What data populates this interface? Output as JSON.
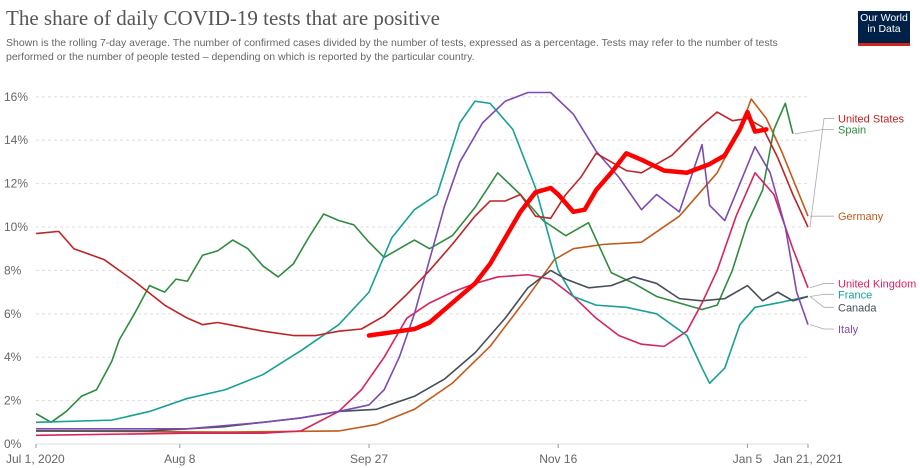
{
  "header": {
    "title": "The share of daily COVID-19 tests that are positive",
    "subtitle": "Shown is the rolling 7-day average. The number of confirmed cases divided by the number of tests, expressed as a percentage. Tests may refer to the number of tests performed or the number of people tested – depending on which is reported by the particular country.",
    "logo_lines": [
      "Our World",
      "in Data"
    ]
  },
  "colors": {
    "grid": "#dddddd",
    "tick": "#666666",
    "annotation": "#ff0000"
  },
  "chart_data": {
    "type": "line",
    "title": "The share of daily COVID-19 tests that are positive",
    "xlabel": "",
    "ylabel": "",
    "x_ticks": [
      {
        "label": "Jul 1, 2020",
        "day": 0
      },
      {
        "label": "Aug 8",
        "day": 38
      },
      {
        "label": "Sep 27",
        "day": 88
      },
      {
        "label": "Nov 16",
        "day": 138
      },
      {
        "label": "Jan 5",
        "day": 188
      },
      {
        "label": "Jan 21, 2021",
        "day": 204
      }
    ],
    "y_ticks": [
      "0%",
      "2%",
      "4%",
      "6%",
      "8%",
      "10%",
      "12%",
      "14%",
      "16%"
    ],
    "ylim": [
      0,
      16.5
    ],
    "x_range_days": [
      0,
      204
    ],
    "grid": true,
    "legend": "right, inline labels",
    "series": [
      {
        "name": "Germany",
        "color": "#c15b1b",
        "points": [
          [
            0,
            0.6
          ],
          [
            50,
            0.55
          ],
          [
            80,
            0.6
          ],
          [
            90,
            0.9
          ],
          [
            100,
            1.6
          ],
          [
            110,
            2.8
          ],
          [
            120,
            4.5
          ],
          [
            130,
            6.8
          ],
          [
            137,
            8.5
          ],
          [
            142,
            9.0
          ],
          [
            150,
            9.2
          ],
          [
            160,
            9.3
          ],
          [
            170,
            10.5
          ],
          [
            180,
            12.5
          ],
          [
            186,
            14.5
          ],
          [
            189,
            15.9
          ],
          [
            193,
            15.0
          ],
          [
            197,
            13.5
          ],
          [
            204,
            10.5
          ]
        ]
      },
      {
        "name": "Spain",
        "color": "#2f8b3e",
        "points": [
          [
            0,
            1.4
          ],
          [
            4,
            1.0
          ],
          [
            8,
            1.5
          ],
          [
            12,
            2.2
          ],
          [
            16,
            2.5
          ],
          [
            20,
            3.8
          ],
          [
            22,
            4.8
          ],
          [
            26,
            6.0
          ],
          [
            30,
            7.3
          ],
          [
            34,
            7.0
          ],
          [
            37,
            7.6
          ],
          [
            40,
            7.5
          ],
          [
            44,
            8.7
          ],
          [
            48,
            8.9
          ],
          [
            52,
            9.4
          ],
          [
            56,
            9.0
          ],
          [
            60,
            8.2
          ],
          [
            64,
            7.7
          ],
          [
            68,
            8.3
          ],
          [
            72,
            9.5
          ],
          [
            76,
            10.6
          ],
          [
            80,
            10.3
          ],
          [
            84,
            10.1
          ],
          [
            88,
            9.3
          ],
          [
            92,
            8.6
          ],
          [
            96,
            9.0
          ],
          [
            100,
            9.4
          ],
          [
            104,
            9.0
          ],
          [
            110,
            9.6
          ],
          [
            116,
            10.9
          ],
          [
            122,
            12.5
          ],
          [
            128,
            11.5
          ],
          [
            134,
            10.3
          ],
          [
            140,
            9.6
          ],
          [
            146,
            10.2
          ],
          [
            152,
            7.9
          ],
          [
            158,
            7.4
          ],
          [
            164,
            6.8
          ],
          [
            170,
            6.5
          ],
          [
            176,
            6.2
          ],
          [
            180,
            6.4
          ],
          [
            184,
            8.0
          ],
          [
            188,
            10.2
          ],
          [
            192,
            11.7
          ],
          [
            195,
            14.5
          ],
          [
            198,
            15.7
          ],
          [
            200,
            14.3
          ]
        ]
      },
      {
        "name": "United Kingdom",
        "color": "#d7235e",
        "points": [
          [
            0,
            0.4
          ],
          [
            40,
            0.5
          ],
          [
            60,
            0.5
          ],
          [
            70,
            0.6
          ],
          [
            80,
            1.5
          ],
          [
            86,
            2.5
          ],
          [
            92,
            4.0
          ],
          [
            98,
            5.8
          ],
          [
            104,
            6.5
          ],
          [
            110,
            7.0
          ],
          [
            116,
            7.4
          ],
          [
            122,
            7.7
          ],
          [
            130,
            7.8
          ],
          [
            136,
            7.6
          ],
          [
            142,
            6.8
          ],
          [
            148,
            5.8
          ],
          [
            154,
            5.0
          ],
          [
            160,
            4.6
          ],
          [
            166,
            4.5
          ],
          [
            172,
            5.2
          ],
          [
            176,
            6.5
          ],
          [
            180,
            8.0
          ],
          [
            185,
            10.5
          ],
          [
            190,
            12.5
          ],
          [
            195,
            11.5
          ],
          [
            200,
            9.0
          ],
          [
            204,
            7.2
          ]
        ]
      },
      {
        "name": "France",
        "color": "#18a095",
        "points": [
          [
            0,
            1.0
          ],
          [
            20,
            1.1
          ],
          [
            30,
            1.5
          ],
          [
            40,
            2.1
          ],
          [
            50,
            2.5
          ],
          [
            60,
            3.2
          ],
          [
            70,
            4.3
          ],
          [
            80,
            5.5
          ],
          [
            88,
            7.0
          ],
          [
            94,
            9.5
          ],
          [
            100,
            10.8
          ],
          [
            106,
            11.5
          ],
          [
            112,
            14.8
          ],
          [
            116,
            15.8
          ],
          [
            120,
            15.7
          ],
          [
            126,
            14.5
          ],
          [
            132,
            11.8
          ],
          [
            138,
            8.0
          ],
          [
            142,
            6.8
          ],
          [
            148,
            6.4
          ],
          [
            156,
            6.3
          ],
          [
            164,
            6.0
          ],
          [
            172,
            5.0
          ],
          [
            176,
            3.5
          ],
          [
            178,
            2.8
          ],
          [
            182,
            3.5
          ],
          [
            186,
            5.5
          ],
          [
            190,
            6.3
          ],
          [
            196,
            6.5
          ],
          [
            204,
            6.8
          ]
        ]
      },
      {
        "name": "Canada",
        "color": "#444e5c",
        "points": [
          [
            0,
            0.6
          ],
          [
            30,
            0.6
          ],
          [
            50,
            0.8
          ],
          [
            60,
            1.0
          ],
          [
            70,
            1.2
          ],
          [
            80,
            1.5
          ],
          [
            90,
            1.6
          ],
          [
            100,
            2.2
          ],
          [
            108,
            3.0
          ],
          [
            116,
            4.2
          ],
          [
            124,
            5.8
          ],
          [
            130,
            7.2
          ],
          [
            136,
            8.0
          ],
          [
            140,
            7.6
          ],
          [
            146,
            7.2
          ],
          [
            152,
            7.3
          ],
          [
            158,
            7.7
          ],
          [
            164,
            7.4
          ],
          [
            170,
            6.7
          ],
          [
            176,
            6.6
          ],
          [
            182,
            6.7
          ],
          [
            188,
            7.3
          ],
          [
            192,
            6.6
          ],
          [
            196,
            7.0
          ],
          [
            200,
            6.6
          ],
          [
            204,
            6.8
          ]
        ]
      },
      {
        "name": "Italy",
        "color": "#7b4bb1",
        "points": [
          [
            0,
            0.7
          ],
          [
            20,
            0.7
          ],
          [
            40,
            0.7
          ],
          [
            60,
            1.0
          ],
          [
            70,
            1.2
          ],
          [
            80,
            1.5
          ],
          [
            88,
            1.8
          ],
          [
            92,
            2.5
          ],
          [
            96,
            4.0
          ],
          [
            100,
            6.0
          ],
          [
            104,
            8.5
          ],
          [
            108,
            11.0
          ],
          [
            112,
            13.0
          ],
          [
            118,
            14.8
          ],
          [
            124,
            15.8
          ],
          [
            130,
            16.2
          ],
          [
            136,
            16.2
          ],
          [
            142,
            15.2
          ],
          [
            148,
            13.5
          ],
          [
            154,
            12.3
          ],
          [
            160,
            10.8
          ],
          [
            164,
            11.5
          ],
          [
            170,
            10.7
          ],
          [
            176,
            13.8
          ],
          [
            178,
            11.0
          ],
          [
            182,
            10.3
          ],
          [
            186,
            12.0
          ],
          [
            190,
            13.7
          ],
          [
            194,
            12.5
          ],
          [
            198,
            10.0
          ],
          [
            201,
            7.0
          ],
          [
            204,
            5.5
          ]
        ]
      },
      {
        "name": "United States",
        "color": "#be2424",
        "points": [
          [
            0,
            9.7
          ],
          [
            6,
            9.8
          ],
          [
            10,
            9.0
          ],
          [
            18,
            8.5
          ],
          [
            26,
            7.5
          ],
          [
            34,
            6.4
          ],
          [
            40,
            5.8
          ],
          [
            44,
            5.5
          ],
          [
            48,
            5.6
          ],
          [
            54,
            5.4
          ],
          [
            60,
            5.2
          ],
          [
            68,
            5.0
          ],
          [
            74,
            5.0
          ],
          [
            80,
            5.2
          ],
          [
            86,
            5.3
          ],
          [
            92,
            5.9
          ],
          [
            98,
            6.9
          ],
          [
            104,
            8.0
          ],
          [
            110,
            9.2
          ],
          [
            116,
            10.5
          ],
          [
            120,
            11.2
          ],
          [
            124,
            11.2
          ],
          [
            128,
            11.5
          ],
          [
            132,
            10.5
          ],
          [
            136,
            10.4
          ],
          [
            140,
            11.5
          ],
          [
            144,
            12.3
          ],
          [
            148,
            13.4
          ],
          [
            152,
            13.0
          ],
          [
            156,
            12.6
          ],
          [
            160,
            12.5
          ],
          [
            164,
            12.9
          ],
          [
            168,
            13.3
          ],
          [
            172,
            14.0
          ],
          [
            176,
            14.7
          ],
          [
            180,
            15.3
          ],
          [
            184,
            14.9
          ],
          [
            188,
            15.0
          ],
          [
            192,
            14.6
          ],
          [
            196,
            13.2
          ],
          [
            200,
            11.5
          ],
          [
            204,
            10.0
          ]
        ]
      }
    ],
    "annotation_stroke": {
      "color": "#ff0000",
      "points": [
        [
          88,
          5.0
        ],
        [
          92,
          5.1
        ],
        [
          96,
          5.2
        ],
        [
          100,
          5.3
        ],
        [
          104,
          5.6
        ],
        [
          108,
          6.2
        ],
        [
          112,
          6.8
        ],
        [
          116,
          7.4
        ],
        [
          120,
          8.3
        ],
        [
          124,
          9.5
        ],
        [
          128,
          10.7
        ],
        [
          132,
          11.6
        ],
        [
          136,
          11.8
        ],
        [
          138,
          11.5
        ],
        [
          142,
          10.7
        ],
        [
          145,
          10.8
        ],
        [
          148,
          11.7
        ],
        [
          152,
          12.5
        ],
        [
          156,
          13.4
        ],
        [
          160,
          13.1
        ],
        [
          166,
          12.6
        ],
        [
          172,
          12.5
        ],
        [
          178,
          12.9
        ],
        [
          182,
          13.3
        ],
        [
          186,
          14.5
        ],
        [
          188,
          15.3
        ],
        [
          190,
          14.4
        ],
        [
          193,
          14.5
        ]
      ]
    },
    "labels": [
      {
        "text": "United States",
        "color": "#be2424",
        "ly": 15.0
      },
      {
        "text": "Spain",
        "color": "#2f8b3e",
        "ly": 14.5
      },
      {
        "text": "Germany",
        "color": "#c15b1b",
        "ly": 10.5
      },
      {
        "text": "United Kingdom",
        "color": "#d7235e",
        "ly": 7.4
      },
      {
        "text": "France",
        "color": "#18a095",
        "ly": 6.9
      },
      {
        "text": "Canada",
        "color": "#444e5c",
        "ly": 6.3
      },
      {
        "text": "Italy",
        "color": "#7b4bb1",
        "ly": 5.3
      }
    ]
  }
}
